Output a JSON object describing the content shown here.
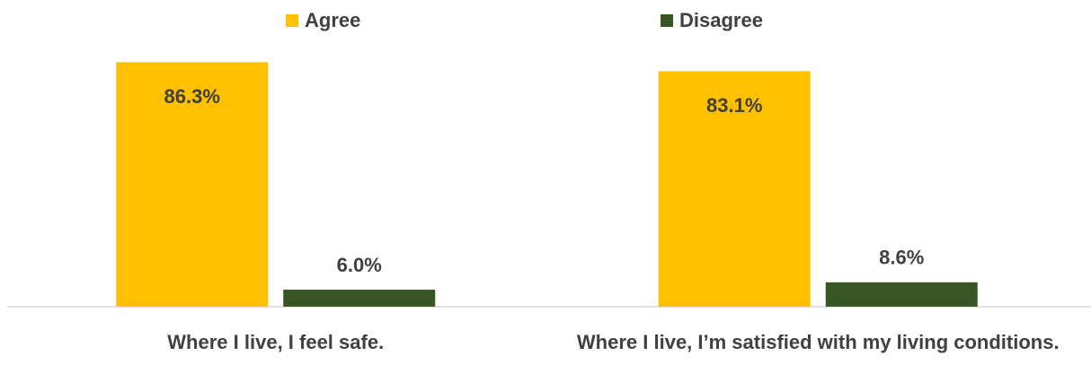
{
  "chart_data": {
    "type": "bar",
    "categories": [
      "Where I live, I feel safe.",
      "Where I live, I’m satisfied with my living conditions."
    ],
    "series": [
      {
        "name": "Agree",
        "color": "#ffc000",
        "values": [
          86.3,
          83.1
        ],
        "value_labels": [
          "86.3%",
          "83.1%"
        ]
      },
      {
        "name": "Disagree",
        "color": "#375623",
        "values": [
          6.0,
          8.6
        ],
        "value_labels": [
          "6.0%",
          "8.6%"
        ]
      }
    ],
    "ylim": [
      0,
      100
    ],
    "legend": "top"
  }
}
